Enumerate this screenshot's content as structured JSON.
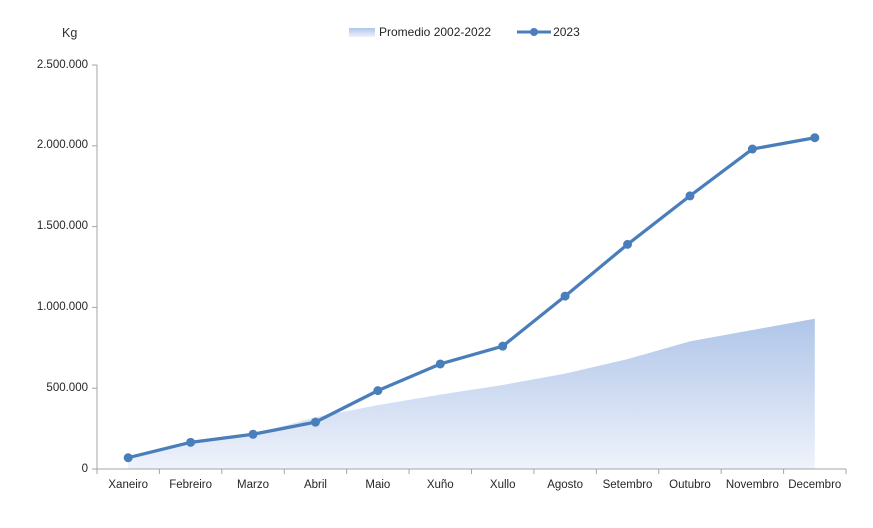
{
  "chart_data": {
    "type": "combo-area-line",
    "categories": [
      "Xaneiro",
      "Febreiro",
      "Marzo",
      "Abril",
      "Maio",
      "Xuño",
      "Xullo",
      "Agosto",
      "Setembro",
      "Outubro",
      "Novembro",
      "Decembro"
    ],
    "series": [
      {
        "name": "Promedio 2002-2022",
        "type": "area",
        "color_top": "#AFC5E8",
        "color_bottom": "#EFF3FB",
        "values": [
          70000,
          160000,
          215000,
          320000,
          395000,
          460000,
          520000,
          590000,
          680000,
          790000,
          860000,
          930000
        ]
      },
      {
        "name": "2023",
        "type": "line",
        "color": "#4A7EBB",
        "values": [
          70000,
          165000,
          215000,
          290000,
          485000,
          650000,
          760000,
          1070000,
          1390000,
          1690000,
          1980000,
          2050000
        ]
      }
    ],
    "title": "",
    "xlabel": "",
    "ylabel": "Kg",
    "ylim": [
      0,
      2500000
    ],
    "yticks": [
      0,
      500000,
      1000000,
      1500000,
      2000000,
      2500000
    ],
    "ytick_labels": [
      "0",
      "500.000",
      "1.000.000",
      "1.500.000",
      "2.000.000",
      "2.500.000"
    ],
    "grid": false,
    "legend_position": "top-center",
    "axis_color": "#A6A6A6",
    "text_color": "#262626"
  }
}
